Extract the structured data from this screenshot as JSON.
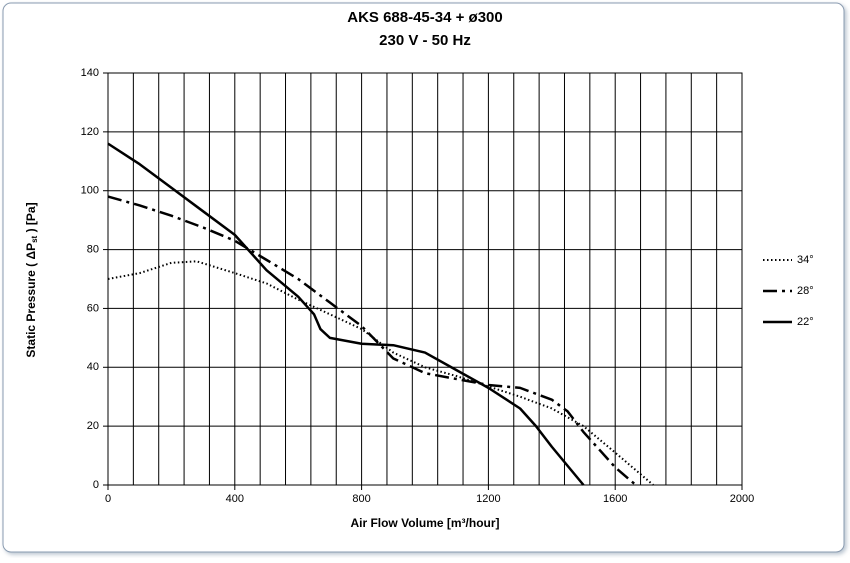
{
  "chart_data": {
    "type": "line",
    "title": "AKS 688-45-34  +  ø300",
    "subtitle": "230 V - 50 Hz",
    "x_label": "Air Flow Volume [m³/hour]",
    "y_label": {
      "text": "Static Pressure ( ΔP",
      "sub": "st",
      "tail": " ) [Pa]"
    },
    "xlim": [
      0,
      2000
    ],
    "ylim": [
      0,
      140
    ],
    "xticks": [
      0,
      400,
      800,
      1200,
      1600,
      2000
    ],
    "xgrid": [
      0,
      80,
      160,
      240,
      320,
      400,
      480,
      560,
      640,
      720,
      800,
      880,
      960,
      1040,
      1120,
      1200,
      1280,
      1360,
      1440,
      1520,
      1600,
      1680,
      1760,
      1840,
      1920,
      2000
    ],
    "yticks": [
      0,
      20,
      40,
      60,
      80,
      100,
      120,
      140
    ],
    "grid": true,
    "legend": "right",
    "series": [
      {
        "name": "34°",
        "color": "#000000",
        "style": "dotted",
        "x": [
          0,
          100,
          200,
          280,
          400,
          500,
          600,
          700,
          800,
          900,
          1000,
          1100,
          1200,
          1300,
          1400,
          1500,
          1600,
          1720
        ],
        "values": [
          70,
          72,
          75.5,
          76,
          72,
          68.5,
          63,
          58,
          53,
          45,
          40,
          37,
          33.5,
          30,
          26,
          20,
          11,
          0
        ]
      },
      {
        "name": "28°",
        "color": "#000000",
        "style": "dash-dot",
        "x": [
          0,
          100,
          200,
          300,
          400,
          500,
          600,
          700,
          800,
          900,
          1000,
          1100,
          1200,
          1300,
          1400,
          1450,
          1500,
          1600,
          1665
        ],
        "values": [
          98,
          95,
          91.5,
          87.5,
          83,
          76.5,
          70,
          62,
          54,
          43,
          38,
          36,
          34,
          33,
          29,
          25,
          18,
          6,
          0
        ]
      },
      {
        "name": "22°",
        "color": "#000000",
        "style": "solid",
        "x": [
          0,
          100,
          200,
          300,
          400,
          500,
          600,
          650,
          670,
          700,
          800,
          900,
          1000,
          1100,
          1200,
          1300,
          1350,
          1400,
          1500
        ],
        "values": [
          116,
          109,
          101,
          93,
          85,
          73,
          64,
          58,
          53,
          50,
          48,
          47.5,
          45,
          39,
          33,
          26,
          20,
          13,
          0
        ]
      }
    ]
  }
}
